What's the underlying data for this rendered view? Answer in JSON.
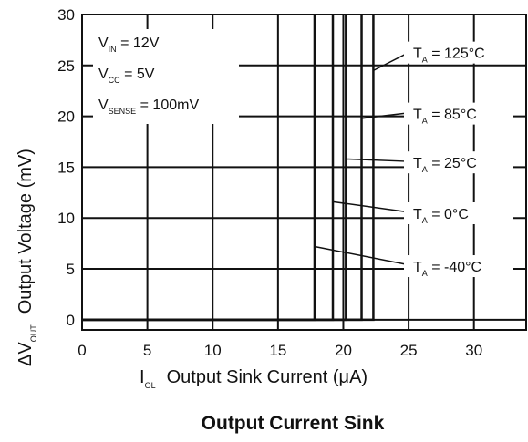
{
  "chart_data": {
    "type": "line",
    "title": "Output Current Sink",
    "xlabel": {
      "symbol": "I",
      "sub": "OL",
      "text": "Output Sink Current (μA)"
    },
    "ylabel": {
      "symbol": "ΔV",
      "sub": "OUT",
      "text": "Output Voltage (mV)"
    },
    "xlim": [
      0,
      34
    ],
    "ylim": [
      -1,
      30
    ],
    "xticks": [
      0,
      5,
      10,
      15,
      20,
      25,
      30
    ],
    "yticks": [
      0,
      5,
      10,
      15,
      20,
      25,
      30
    ],
    "grid": true,
    "conditions": [
      {
        "sym": "V",
        "sub": "IN",
        "rest": " = 12V"
      },
      {
        "sym": "V",
        "sub": "CC",
        "rest": " = 5V"
      },
      {
        "sym": "V",
        "sub": "SENSE",
        "rest": " = 100mV"
      }
    ],
    "series": [
      {
        "name": "T_A = 125°C",
        "label": {
          "sym": "T",
          "sub": "A",
          "rest": " = 125°C"
        },
        "x": [
          0,
          22.3,
          22.3
        ],
        "y": [
          0,
          0,
          30
        ]
      },
      {
        "name": "T_A = 85°C",
        "label": {
          "sym": "T",
          "sub": "A",
          "rest": " = 85°C"
        },
        "x": [
          0,
          21.4,
          21.4
        ],
        "y": [
          0,
          0,
          30
        ]
      },
      {
        "name": "T_A = 25°C",
        "label": {
          "sym": "T",
          "sub": "A",
          "rest": " = 25°C"
        },
        "x": [
          0,
          20.2,
          20.2
        ],
        "y": [
          0,
          0,
          30
        ]
      },
      {
        "name": "T_A = 0°C",
        "label": {
          "sym": "T",
          "sub": "A",
          "rest": " = 0°C"
        },
        "x": [
          0,
          19.2,
          19.2
        ],
        "y": [
          0,
          0,
          30
        ]
      },
      {
        "name": "T_A = -40°C",
        "label": {
          "sym": "T",
          "sub": "A",
          "rest": " = -40°C"
        },
        "x": [
          0,
          17.8,
          17.8
        ],
        "y": [
          0,
          0,
          30
        ]
      }
    ],
    "colors": {
      "line": "#111111",
      "grid": "#111111"
    }
  }
}
